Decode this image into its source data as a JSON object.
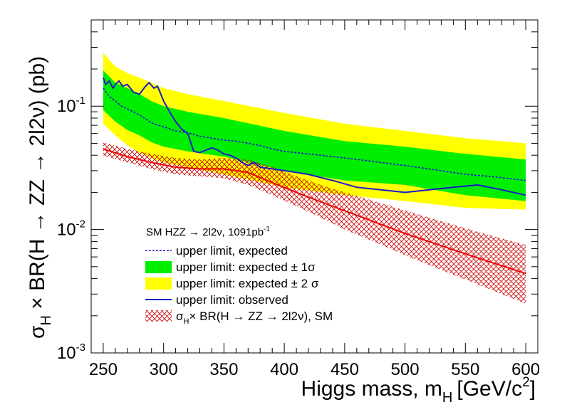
{
  "chart_data": {
    "type": "line",
    "xlabel": "Higgs mass, m",
    "xlabel_sub": "H",
    "xlabel_unit": "[GeV/c",
    "xlabel_unit_sup": "2",
    "xlabel_unit_end": "]",
    "ylabel": "σ_H × BR(H → ZZ → 2l2ν) (pb)",
    "ylabel_parts": {
      "sigma": "σ",
      "sigma_sub": "H",
      "rest": " × BR(H → ZZ → 2l2ν) (pb)"
    },
    "yscale": "log",
    "xlim": [
      240,
      610
    ],
    "ylim": [
      0.001,
      0.5
    ],
    "x_ticks": [
      250,
      300,
      350,
      400,
      450,
      500,
      550,
      600
    ],
    "x_tick_labels": [
      "250",
      "300",
      "350",
      "400",
      "450",
      "500",
      "550",
      "600"
    ],
    "y_ticks": [
      {
        "value": 0.1,
        "base": "10",
        "exp": "-1"
      },
      {
        "value": 0.01,
        "base": "10",
        "exp": "-2"
      },
      {
        "value": 0.001,
        "base": "10",
        "exp": "-3"
      }
    ],
    "legend": {
      "placement": "bottom-left",
      "header": "SM HZZ → 2l2ν, 1091pb",
      "header_sup": "-1",
      "entries": [
        {
          "key": "expected",
          "label": "upper limit, expected",
          "style": "dashed-line",
          "color": "#1a1acc"
        },
        {
          "key": "band1",
          "label": "upper limit: expected ± 1σ",
          "style": "fill",
          "color": "#00ee00"
        },
        {
          "key": "band2",
          "label": "upper limit: expected ± 2 σ",
          "style": "fill",
          "color": "#ffff00"
        },
        {
          "key": "observed",
          "label": "upper limit: observed",
          "style": "line",
          "color": "#1a1acc"
        },
        {
          "key": "sm",
          "label": "σ_H × BR(H → ZZ → 2l2ν), SM",
          "style": "hatch",
          "color": "#cc0000",
          "label_parts": {
            "sigma": "σ",
            "sub": "H",
            "rest": "× BR(H → ZZ → 2l2ν), SM"
          }
        }
      ]
    },
    "series": [
      {
        "name": "upper limit, expected",
        "key": "expected",
        "x": [
          250,
          255,
          260,
          265,
          270,
          280,
          290,
          300,
          310,
          320,
          330,
          340,
          350,
          360,
          370,
          380,
          390,
          400,
          420,
          450,
          470,
          500,
          520,
          550,
          570,
          600
        ],
        "values": [
          0.14,
          0.12,
          0.11,
          0.1,
          0.095,
          0.085,
          0.073,
          0.068,
          0.063,
          0.061,
          0.057,
          0.055,
          0.053,
          0.052,
          0.05,
          0.048,
          0.045,
          0.043,
          0.041,
          0.038,
          0.036,
          0.033,
          0.031,
          0.028,
          0.027,
          0.025
        ]
      },
      {
        "name": "upper limit: expected ± 1σ",
        "key": "band1",
        "x": [
          250,
          260,
          270,
          280,
          290,
          300,
          320,
          350,
          400,
          450,
          500,
          550,
          600
        ],
        "lower": [
          0.093,
          0.075,
          0.064,
          0.058,
          0.051,
          0.047,
          0.043,
          0.039,
          0.03,
          0.025,
          0.023,
          0.019,
          0.017
        ],
        "upper": [
          0.195,
          0.155,
          0.14,
          0.125,
          0.11,
          0.1,
          0.09,
          0.08,
          0.063,
          0.052,
          0.047,
          0.041,
          0.037
        ]
      },
      {
        "name": "upper limit: expected ± 2 σ",
        "key": "band2",
        "x": [
          250,
          260,
          270,
          280,
          290,
          300,
          320,
          350,
          400,
          450,
          500,
          550,
          600
        ],
        "lower": [
          0.072,
          0.058,
          0.048,
          0.042,
          0.038,
          0.035,
          0.032,
          0.028,
          0.022,
          0.019,
          0.017,
          0.015,
          0.0145
        ],
        "upper": [
          0.27,
          0.21,
          0.185,
          0.17,
          0.155,
          0.14,
          0.125,
          0.11,
          0.088,
          0.072,
          0.063,
          0.055,
          0.05
        ]
      },
      {
        "name": "upper limit: observed",
        "key": "observed",
        "x": [
          250,
          252,
          255,
          258,
          260,
          263,
          266,
          270,
          275,
          280,
          285,
          288,
          292,
          295,
          300,
          305,
          310,
          315,
          320,
          325,
          330,
          335,
          340,
          345,
          350,
          355,
          360,
          365,
          370,
          375,
          380,
          390,
          400,
          410,
          420,
          440,
          460,
          480,
          500,
          520,
          540,
          560,
          580,
          600
        ],
        "values": [
          0.17,
          0.15,
          0.16,
          0.14,
          0.15,
          0.16,
          0.145,
          0.15,
          0.13,
          0.125,
          0.145,
          0.155,
          0.14,
          0.145,
          0.11,
          0.09,
          0.075,
          0.065,
          0.06,
          0.043,
          0.042,
          0.044,
          0.046,
          0.044,
          0.041,
          0.04,
          0.038,
          0.035,
          0.033,
          0.035,
          0.032,
          0.031,
          0.03,
          0.029,
          0.028,
          0.025,
          0.022,
          0.021,
          0.02,
          0.021,
          0.022,
          0.023,
          0.021,
          0.019
        ]
      },
      {
        "name": "σ_H × BR(H → ZZ → 2l2ν), SM",
        "key": "sm",
        "x": [
          250,
          270,
          290,
          310,
          330,
          350,
          370,
          390,
          410,
          430,
          450,
          470,
          500,
          530,
          560,
          600
        ],
        "values": [
          0.045,
          0.039,
          0.035,
          0.032,
          0.031,
          0.031,
          0.029,
          0.024,
          0.02,
          0.0168,
          0.0142,
          0.012,
          0.0093,
          0.0074,
          0.0059,
          0.0044
        ],
        "lower": [
          0.04,
          0.035,
          0.031,
          0.028,
          0.027,
          0.026,
          0.023,
          0.019,
          0.0155,
          0.0125,
          0.01,
          0.0083,
          0.0062,
          0.0047,
          0.0036,
          0.0025
        ],
        "upper": [
          0.051,
          0.045,
          0.041,
          0.038,
          0.037,
          0.038,
          0.037,
          0.032,
          0.027,
          0.023,
          0.02,
          0.0175,
          0.0143,
          0.0117,
          0.0096,
          0.0075
        ]
      }
    ]
  }
}
